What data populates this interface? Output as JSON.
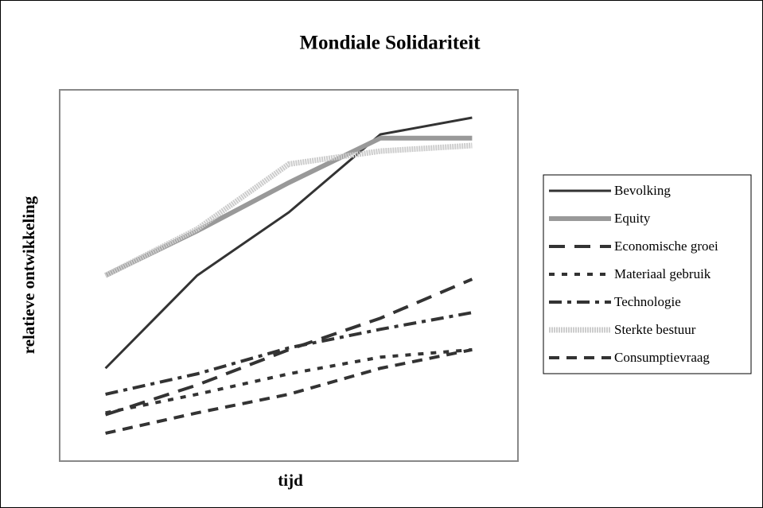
{
  "chart_data": {
    "type": "line",
    "title": "Mondiale Solidariteit",
    "x_label": "tijd",
    "y_label": "relatieve ontwikkeling",
    "categories": [
      null,
      null,
      null,
      null,
      null
    ],
    "ylim": [
      0,
      100
    ],
    "series": [
      {
        "name": "Bevolking",
        "color": "#333333",
        "width": 3,
        "dash": "none",
        "values": [
          25,
          50,
          67,
          88,
          92.5
        ]
      },
      {
        "name": "Equity",
        "color": "#999999",
        "width": 6,
        "dash": "none",
        "values": [
          50,
          62,
          75,
          87,
          87
        ]
      },
      {
        "name": "Economische groei",
        "color": "#333333",
        "width": 4,
        "dash": "20,12",
        "values": [
          12.5,
          20.5,
          30,
          38.5,
          49
        ]
      },
      {
        "name": "Materiaal gebruik",
        "color": "#333333",
        "width": 4,
        "dash": "7,9",
        "values": [
          13,
          18,
          23.5,
          28,
          30
        ]
      },
      {
        "name": "Technologie",
        "color": "#333333",
        "width": 4,
        "dash": "16,7,5,7",
        "values": [
          18,
          23.5,
          30.5,
          35.5,
          40
        ]
      },
      {
        "name": "Sterkte bestuur",
        "color": "#cccccc",
        "width": 7,
        "dash": "2,1",
        "values": [
          50,
          62.5,
          80,
          83.5,
          85
        ]
      },
      {
        "name": "Consumptievraag",
        "color": "#333333",
        "width": 4,
        "dash": "13,9",
        "values": [
          7.5,
          13,
          18,
          25,
          30
        ]
      }
    ]
  }
}
